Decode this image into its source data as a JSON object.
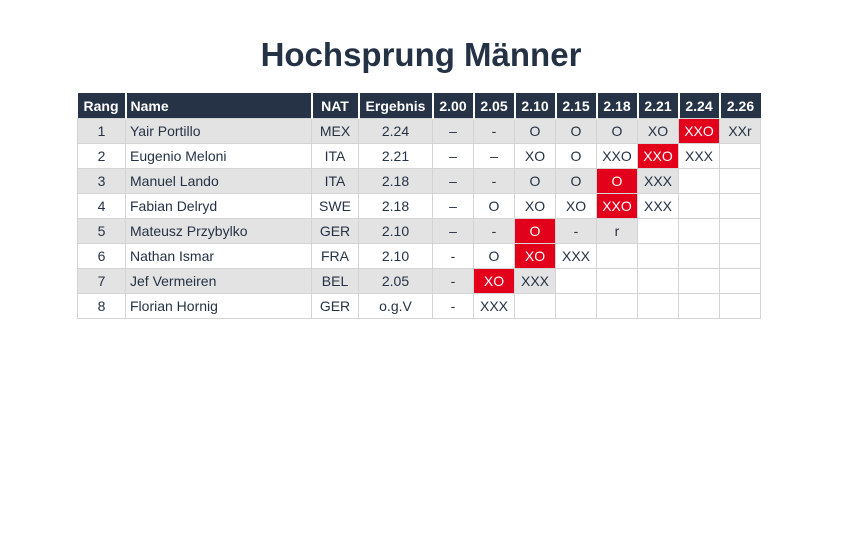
{
  "title": "Hochsprung Männer",
  "columns": {
    "rang": "Rang",
    "name": "Name",
    "nat": "NAT",
    "ergebnis": "Ergebnis",
    "heights": [
      "2.00",
      "2.05",
      "2.10",
      "2.15",
      "2.18",
      "2.21",
      "2.24",
      "2.26"
    ]
  },
  "rows": [
    {
      "rang": "1",
      "name": "Yair Portillo",
      "nat": "MEX",
      "ergebnis": "2.24",
      "attempts": [
        "–",
        "-",
        "O",
        "O",
        "O",
        "XO",
        "XXO",
        "XXr"
      ],
      "highlight": 6
    },
    {
      "rang": "2",
      "name": "Eugenio Meloni",
      "nat": "ITA",
      "ergebnis": "2.21",
      "attempts": [
        "–",
        "–",
        "XO",
        "O",
        "XXO",
        "XXO",
        "XXX",
        ""
      ],
      "highlight": 5
    },
    {
      "rang": "3",
      "name": "Manuel Lando",
      "nat": "ITA",
      "ergebnis": "2.18",
      "attempts": [
        "–",
        "-",
        "O",
        "O",
        "O",
        "XXX",
        "",
        ""
      ],
      "highlight": 4
    },
    {
      "rang": "4",
      "name": "Fabian Delryd",
      "nat": "SWE",
      "ergebnis": "2.18",
      "attempts": [
        "–",
        "O",
        "XO",
        "XO",
        "XXO",
        "XXX",
        "",
        ""
      ],
      "highlight": 4
    },
    {
      "rang": "5",
      "name": "Mateusz Przybylko",
      "nat": "GER",
      "ergebnis": "2.10",
      "attempts": [
        "–",
        "-",
        "O",
        "-",
        "r",
        "",
        "",
        ""
      ],
      "highlight": 2
    },
    {
      "rang": "6",
      "name": "Nathan Ismar",
      "nat": "FRA",
      "ergebnis": "2.10",
      "attempts": [
        "-",
        "O",
        "XO",
        "XXX",
        "",
        "",
        "",
        ""
      ],
      "highlight": 2
    },
    {
      "rang": "7",
      "name": "Jef Vermeiren",
      "nat": "BEL",
      "ergebnis": "2.05",
      "attempts": [
        "-",
        "XO",
        "XXX",
        "",
        "",
        "",
        "",
        ""
      ],
      "highlight": 1
    },
    {
      "rang": "8",
      "name": "Florian Hornig",
      "nat": "GER",
      "ergebnis": "o.g.V",
      "attempts": [
        "-",
        "XXX",
        "",
        "",
        "",
        "",
        "",
        ""
      ],
      "highlight": -1
    }
  ],
  "colors": {
    "header_bg": "#263246",
    "title": "#253245",
    "highlight": "#e3001b",
    "shade": "#e3e3e3"
  }
}
